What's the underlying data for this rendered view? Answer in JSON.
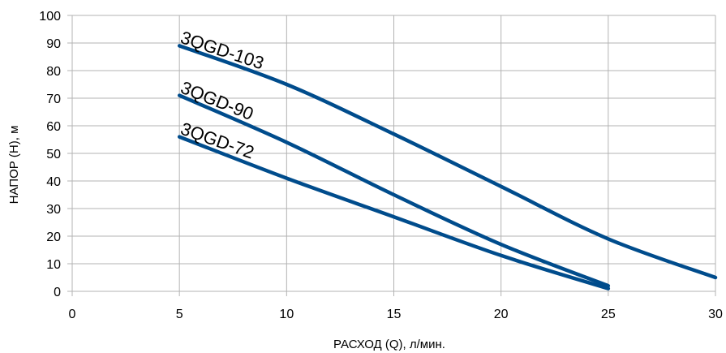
{
  "chart_data": {
    "type": "line",
    "title": "",
    "xlabel": "РАСХОД (Q), л/мин.",
    "ylabel": "НАПОР (H), м",
    "xlim": [
      0,
      30
    ],
    "ylim": [
      0,
      100
    ],
    "xticks": [
      "0",
      "5",
      "10",
      "15",
      "20",
      "25",
      "30"
    ],
    "yticks": [
      "0",
      "10",
      "20",
      "30",
      "40",
      "50",
      "60",
      "70",
      "80",
      "90",
      "100"
    ],
    "grid": true,
    "legend": "none",
    "colors": {
      "line": "#004c8c",
      "grid": "#b3b3b3",
      "axis": "#b3b3b3"
    },
    "series": [
      {
        "name": "3QGD-103",
        "x": [
          5,
          10,
          15,
          20,
          25,
          30
        ],
        "y": [
          89,
          75,
          57,
          38,
          19,
          5
        ]
      },
      {
        "name": "3QGD-90",
        "x": [
          5,
          10,
          15,
          20,
          25
        ],
        "y": [
          71,
          54,
          35,
          17,
          2
        ]
      },
      {
        "name": "3QGD-72",
        "x": [
          5,
          10,
          15,
          20,
          25
        ],
        "y": [
          56,
          41,
          27,
          13,
          1
        ]
      }
    ]
  }
}
